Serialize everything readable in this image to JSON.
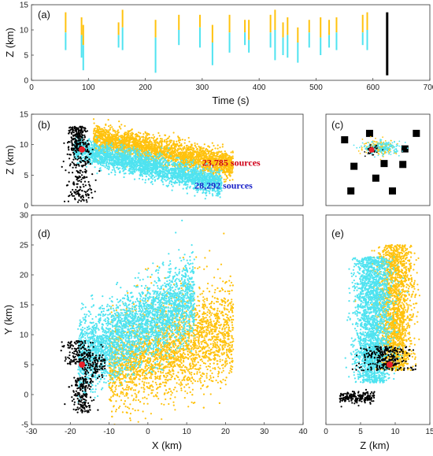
{
  "colors": {
    "yellow": "#FFC20E",
    "cyan": "#4FE3F0",
    "black": "#000000",
    "red": "#E8202A",
    "ann_red": "#D0021B",
    "ann_blue": "#1A22C8"
  },
  "chart_data": [
    {
      "id": "a",
      "type": "scatter",
      "panel_label": "(a)",
      "xlabel": "Time (s)",
      "ylabel": "Z (km)",
      "xlim": [
        0,
        700
      ],
      "ylim": [
        0,
        15
      ],
      "xticks": [
        0,
        100,
        200,
        300,
        400,
        500,
        600,
        700
      ],
      "yticks": [
        0,
        5,
        10,
        15
      ],
      "flashes": [
        {
          "t": 60,
          "y_top": 13.5,
          "y_mid": 9.5,
          "y_bot": 6
        },
        {
          "t": 88,
          "y_top": 12.5,
          "y_mid": 9.0,
          "y_bot": 4.5
        },
        {
          "t": 91,
          "y_top": 11.0,
          "y_mid": 7.0,
          "y_bot": 2
        },
        {
          "t": 153,
          "y_top": 11.5,
          "y_mid": 9.0,
          "y_bot": 6.5
        },
        {
          "t": 160,
          "y_top": 14.0,
          "y_mid": 10.5,
          "y_bot": 6
        },
        {
          "t": 218,
          "y_top": 12.0,
          "y_mid": 8.5,
          "y_bot": 1.5
        },
        {
          "t": 259,
          "y_top": 13.0,
          "y_mid": 10.0,
          "y_bot": 7
        },
        {
          "t": 296,
          "y_top": 13.0,
          "y_mid": 10.5,
          "y_bot": 6.5
        },
        {
          "t": 318,
          "y_top": 11.0,
          "y_mid": 7.5,
          "y_bot": 3
        },
        {
          "t": 348,
          "y_top": 13.0,
          "y_mid": 9.5,
          "y_bot": 5.5
        },
        {
          "t": 375,
          "y_top": 12.0,
          "y_mid": 9.5,
          "y_bot": 7
        },
        {
          "t": 382,
          "y_top": 12.0,
          "y_mid": 8.0,
          "y_bot": 5.5
        },
        {
          "t": 420,
          "y_top": 13.0,
          "y_mid": 9.5,
          "y_bot": 6.5
        },
        {
          "t": 428,
          "y_top": 14.0,
          "y_mid": 10.0,
          "y_bot": 4
        },
        {
          "t": 442,
          "y_top": 11.5,
          "y_mid": 8.5,
          "y_bot": 5
        },
        {
          "t": 450,
          "y_top": 12.5,
          "y_mid": 9.0,
          "y_bot": 4.5
        },
        {
          "t": 468,
          "y_top": 10.5,
          "y_mid": 7.5,
          "y_bot": 3.5
        },
        {
          "t": 488,
          "y_top": 12.0,
          "y_mid": 9.5,
          "y_bot": 6.5
        },
        {
          "t": 508,
          "y_top": 12.5,
          "y_mid": 8.5,
          "y_bot": 5
        },
        {
          "t": 523,
          "y_top": 12.0,
          "y_mid": 9.0,
          "y_bot": 6.5
        },
        {
          "t": 536,
          "y_top": 12.5,
          "y_mid": 9.5,
          "y_bot": 6
        },
        {
          "t": 582,
          "y_top": 13.0,
          "y_mid": 9.5,
          "y_bot": 7
        },
        {
          "t": 590,
          "y_top": 13.5,
          "y_mid": 10.0,
          "y_bot": 6
        }
      ],
      "black_flash": {
        "t": 625,
        "y_top": 13.5,
        "y_bot": 1
      },
      "grid": false
    },
    {
      "id": "b",
      "type": "scatter",
      "panel_label": "(b)",
      "xlabel": "",
      "ylabel": "Z (km)",
      "xlim": [
        -30,
        40
      ],
      "ylim": [
        0,
        15
      ],
      "yticks": [
        0,
        5,
        10,
        15
      ],
      "red_marker": {
        "x": -17,
        "y": 9.2
      },
      "annotations": [
        {
          "text": "23,785 sources",
          "x": 21.5,
          "y": 6.5,
          "color": "ann_red"
        },
        {
          "text": "28,292 sources",
          "x": 19.5,
          "y": 2.8,
          "color": "ann_blue"
        }
      ],
      "grid": false
    },
    {
      "id": "c",
      "type": "scatter",
      "panel_label": "(c)",
      "xlim": [
        0,
        1
      ],
      "ylim": [
        0,
        1
      ],
      "stations": [
        [
          0.18,
          0.72
        ],
        [
          0.42,
          0.79
        ],
        [
          0.87,
          0.79
        ],
        [
          0.76,
          0.62
        ],
        [
          0.27,
          0.43
        ],
        [
          0.56,
          0.46
        ],
        [
          0.74,
          0.45
        ],
        [
          0.24,
          0.16
        ],
        [
          0.64,
          0.16
        ],
        [
          0.48,
          0.3
        ]
      ],
      "red_marker": {
        "x": 0.44,
        "y": 0.61
      },
      "grid": false
    },
    {
      "id": "d",
      "type": "scatter",
      "panel_label": "(d)",
      "xlabel": "X (km)",
      "ylabel": "Y (km)",
      "xlim": [
        -30,
        40
      ],
      "ylim": [
        -5,
        30
      ],
      "xticks": [
        -30,
        -20,
        -10,
        0,
        10,
        20,
        30,
        40
      ],
      "yticks": [
        -5,
        0,
        5,
        10,
        15,
        20,
        25,
        30
      ],
      "red_marker": {
        "x": -17,
        "y": 5
      },
      "grid": false
    },
    {
      "id": "e",
      "type": "scatter",
      "panel_label": "(e)",
      "xlabel": "Z (km)",
      "xlim": [
        0,
        15
      ],
      "ylim": [
        -5,
        30
      ],
      "xticks": [
        0,
        5,
        10,
        15
      ],
      "red_marker": {
        "x": 9.2,
        "y": 5
      },
      "grid": false
    }
  ]
}
